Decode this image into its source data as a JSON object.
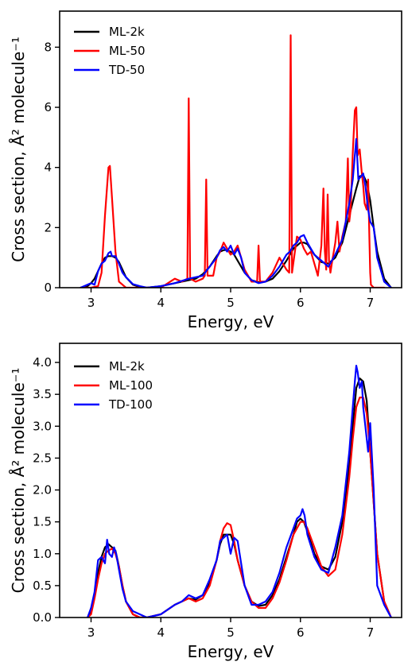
{
  "chart_data": [
    {
      "type": "line",
      "title": "",
      "xlabel": "Energy, eV",
      "ylabel": "Cross section, Å² molecule⁻¹",
      "xlim": [
        2.55,
        7.45
      ],
      "ylim": [
        0,
        9.2
      ],
      "xticks": [
        3,
        4,
        5,
        6,
        7
      ],
      "yticks": [
        0,
        2,
        4,
        6,
        8
      ],
      "ytick_decimals": 0,
      "legend_position": "top-left",
      "series": [
        {
          "name": "ML-2k",
          "color": "#000000",
          "x": [
            2.85,
            2.95,
            3.0,
            3.05,
            3.1,
            3.15,
            3.2,
            3.25,
            3.3,
            3.35,
            3.4,
            3.45,
            3.5,
            3.6,
            3.7,
            3.8,
            4.0,
            4.2,
            4.4,
            4.5,
            4.6,
            4.7,
            4.8,
            4.85,
            4.9,
            4.95,
            5.0,
            5.05,
            5.1,
            5.2,
            5.3,
            5.4,
            5.5,
            5.6,
            5.7,
            5.8,
            5.9,
            6.0,
            6.05,
            6.1,
            6.2,
            6.3,
            6.4,
            6.5,
            6.6,
            6.7,
            6.8,
            6.85,
            6.9,
            6.95,
            7.0,
            7.05,
            7.1,
            7.2,
            7.3
          ],
          "y": [
            0,
            0.05,
            0.15,
            0.3,
            0.55,
            0.8,
            1.0,
            1.05,
            1.05,
            1.0,
            0.85,
            0.6,
            0.35,
            0.1,
            0.02,
            0,
            0.05,
            0.15,
            0.25,
            0.3,
            0.45,
            0.7,
            1.05,
            1.2,
            1.25,
            1.25,
            1.2,
            1.1,
            0.9,
            0.5,
            0.25,
            0.18,
            0.2,
            0.3,
            0.55,
            0.9,
            1.3,
            1.5,
            1.5,
            1.45,
            1.1,
            0.85,
            0.8,
            1.0,
            1.5,
            2.4,
            3.3,
            3.7,
            3.75,
            3.5,
            2.9,
            2.0,
            1.2,
            0.3,
            0
          ]
        },
        {
          "name": "ML-50",
          "color": "#ff0000",
          "x": [
            2.85,
            3.0,
            3.1,
            3.15,
            3.2,
            3.25,
            3.27,
            3.3,
            3.35,
            3.4,
            3.5,
            3.7,
            4.0,
            4.2,
            4.3,
            4.38,
            4.4,
            4.42,
            4.5,
            4.6,
            4.63,
            4.65,
            4.67,
            4.75,
            4.8,
            4.85,
            4.9,
            4.95,
            5.0,
            5.05,
            5.1,
            5.2,
            5.3,
            5.38,
            5.4,
            5.42,
            5.5,
            5.6,
            5.7,
            5.8,
            5.84,
            5.86,
            5.88,
            5.95,
            6.0,
            6.05,
            6.1,
            6.15,
            6.2,
            6.25,
            6.3,
            6.33,
            6.35,
            6.37,
            6.39,
            6.41,
            6.43,
            6.45,
            6.5,
            6.53,
            6.56,
            6.6,
            6.65,
            6.68,
            6.7,
            6.72,
            6.75,
            6.78,
            6.8,
            6.82,
            6.85,
            6.88,
            6.9,
            6.92,
            6.95,
            6.97,
            6.99,
            7.0,
            7.01,
            7.05,
            7.2
          ],
          "y": [
            0,
            0,
            0.05,
            0.5,
            2.4,
            4.0,
            4.05,
            3.0,
            1.2,
            0.2,
            0,
            0,
            0,
            0.3,
            0.2,
            0.3,
            6.3,
            0.3,
            0.2,
            0.3,
            0.4,
            3.6,
            0.4,
            0.4,
            1.0,
            1.2,
            1.5,
            1.3,
            1.1,
            1.2,
            1.4,
            0.6,
            0.2,
            0.2,
            1.4,
            0.2,
            0.2,
            0.5,
            1.0,
            0.6,
            0.5,
            8.4,
            0.5,
            1.7,
            1.6,
            1.3,
            1.1,
            1.2,
            0.8,
            0.4,
            1.4,
            3.3,
            1.2,
            0.6,
            3.1,
            0.9,
            0.5,
            0.8,
            1.5,
            2.2,
            1.2,
            1.7,
            2.2,
            4.3,
            2.2,
            2.6,
            4.5,
            5.9,
            6.0,
            4.4,
            4.6,
            3.8,
            3.4,
            2.8,
            2.6,
            3.6,
            1.5,
            0.5,
            0.1,
            0,
            0
          ]
        },
        {
          "name": "TD-50",
          "color": "#0000ff",
          "x": [
            2.85,
            3.0,
            3.05,
            3.1,
            3.15,
            3.2,
            3.25,
            3.28,
            3.3,
            3.35,
            3.4,
            3.45,
            3.5,
            3.6,
            3.7,
            3.8,
            4.0,
            4.2,
            4.4,
            4.5,
            4.6,
            4.7,
            4.8,
            4.85,
            4.9,
            4.95,
            5.0,
            5.05,
            5.1,
            5.15,
            5.2,
            5.3,
            5.4,
            5.5,
            5.6,
            5.7,
            5.8,
            5.85,
            5.9,
            5.95,
            6.0,
            6.05,
            6.1,
            6.2,
            6.3,
            6.4,
            6.5,
            6.6,
            6.7,
            6.75,
            6.78,
            6.8,
            6.83,
            6.87,
            6.9,
            6.93,
            6.97,
            7.0,
            7.05,
            7.1,
            7.2,
            7.3
          ],
          "y": [
            0,
            0.15,
            0.1,
            0.55,
            0.8,
            0.9,
            1.15,
            1.2,
            1.05,
            1.05,
            0.8,
            0.5,
            0.35,
            0.12,
            0.05,
            0,
            0.05,
            0.15,
            0.3,
            0.35,
            0.4,
            0.7,
            1.0,
            1.25,
            1.35,
            1.2,
            1.4,
            1.1,
            1.3,
            1.0,
            0.5,
            0.25,
            0.15,
            0.2,
            0.4,
            0.7,
            1.1,
            1.2,
            1.4,
            1.5,
            1.7,
            1.75,
            1.5,
            1.1,
            0.9,
            0.7,
            1.1,
            1.6,
            2.8,
            3.6,
            4.4,
            4.95,
            3.6,
            3.7,
            3.8,
            3.4,
            2.6,
            2.2,
            2.0,
            1.0,
            0.2,
            0
          ]
        }
      ]
    },
    {
      "type": "line",
      "title": "",
      "xlabel": "Energy, eV",
      "ylabel": "Cross section, Å² molecule⁻¹",
      "xlim": [
        2.55,
        7.45
      ],
      "ylim": [
        0,
        4.3
      ],
      "xticks": [
        3,
        4,
        5,
        6,
        7
      ],
      "yticks": [
        0,
        0.5,
        1.0,
        1.5,
        2.0,
        2.5,
        3.0,
        3.5,
        4.0
      ],
      "ytick_decimals": 1,
      "legend_position": "top-left",
      "series": [
        {
          "name": "ML-2k",
          "color": "#000000",
          "x": [
            2.95,
            3.0,
            3.05,
            3.1,
            3.15,
            3.2,
            3.25,
            3.3,
            3.35,
            3.4,
            3.45,
            3.5,
            3.6,
            3.7,
            3.8,
            4.0,
            4.2,
            4.3,
            4.4,
            4.5,
            4.6,
            4.7,
            4.8,
            4.85,
            4.9,
            4.95,
            5.0,
            5.05,
            5.1,
            5.2,
            5.3,
            5.4,
            5.5,
            5.6,
            5.7,
            5.8,
            5.9,
            5.95,
            6.0,
            6.05,
            6.1,
            6.2,
            6.3,
            6.4,
            6.5,
            6.6,
            6.7,
            6.75,
            6.8,
            6.85,
            6.9,
            6.95,
            7.0,
            7.05,
            7.1,
            7.2,
            7.3
          ],
          "y": [
            0,
            0.1,
            0.35,
            0.7,
            0.95,
            1.1,
            1.15,
            1.1,
            1.05,
            0.8,
            0.5,
            0.25,
            0.05,
            0,
            0,
            0.05,
            0.2,
            0.25,
            0.3,
            0.28,
            0.35,
            0.55,
            0.9,
            1.15,
            1.3,
            1.3,
            1.3,
            1.15,
            0.9,
            0.5,
            0.25,
            0.18,
            0.2,
            0.35,
            0.6,
            0.95,
            1.3,
            1.5,
            1.55,
            1.5,
            1.35,
            1.0,
            0.8,
            0.75,
            0.95,
            1.5,
            2.4,
            3.0,
            3.6,
            3.75,
            3.7,
            3.4,
            2.6,
            1.8,
            1.0,
            0.25,
            0
          ]
        },
        {
          "name": "ML-100",
          "color": "#ff0000",
          "x": [
            2.95,
            3.0,
            3.05,
            3.1,
            3.15,
            3.2,
            3.25,
            3.3,
            3.35,
            3.4,
            3.45,
            3.5,
            3.6,
            3.7,
            3.8,
            4.0,
            4.2,
            4.3,
            4.4,
            4.5,
            4.6,
            4.7,
            4.8,
            4.85,
            4.9,
            4.95,
            5.0,
            5.05,
            5.1,
            5.2,
            5.3,
            5.4,
            5.5,
            5.6,
            5.7,
            5.8,
            5.9,
            6.0,
            6.05,
            6.1,
            6.2,
            6.3,
            6.4,
            6.5,
            6.6,
            6.7,
            6.75,
            6.8,
            6.85,
            6.9,
            6.95,
            7.0,
            7.05,
            7.1,
            7.2,
            7.3
          ],
          "y": [
            0,
            0.05,
            0.3,
            0.6,
            0.85,
            1.0,
            1.05,
            1.08,
            1.0,
            0.8,
            0.5,
            0.25,
            0.05,
            0,
            0,
            0.05,
            0.2,
            0.25,
            0.3,
            0.25,
            0.3,
            0.5,
            0.9,
            1.2,
            1.4,
            1.48,
            1.45,
            1.2,
            0.9,
            0.5,
            0.25,
            0.15,
            0.15,
            0.3,
            0.55,
            0.9,
            1.3,
            1.5,
            1.5,
            1.4,
            1.1,
            0.8,
            0.65,
            0.75,
            1.3,
            2.2,
            2.8,
            3.3,
            3.45,
            3.45,
            3.2,
            2.6,
            1.8,
            1.0,
            0.25,
            0
          ]
        },
        {
          "name": "TD-100",
          "color": "#0000ff",
          "x": [
            2.95,
            3.0,
            3.05,
            3.1,
            3.15,
            3.2,
            3.23,
            3.26,
            3.3,
            3.33,
            3.36,
            3.4,
            3.45,
            3.5,
            3.6,
            3.7,
            3.8,
            4.0,
            4.2,
            4.3,
            4.4,
            4.5,
            4.6,
            4.7,
            4.8,
            4.85,
            4.9,
            4.95,
            5.0,
            5.05,
            5.1,
            5.2,
            5.3,
            5.4,
            5.5,
            5.6,
            5.7,
            5.8,
            5.9,
            5.95,
            6.0,
            6.03,
            6.06,
            6.1,
            6.2,
            6.3,
            6.4,
            6.5,
            6.6,
            6.7,
            6.75,
            6.78,
            6.8,
            6.82,
            6.85,
            6.88,
            6.9,
            6.93,
            6.97,
            7.0,
            7.05,
            7.1,
            7.2,
            7.3
          ],
          "y": [
            0,
            0.15,
            0.4,
            0.9,
            0.95,
            0.85,
            1.22,
            1.0,
            0.95,
            1.1,
            1.0,
            0.75,
            0.45,
            0.25,
            0.1,
            0.05,
            0,
            0.05,
            0.2,
            0.25,
            0.35,
            0.3,
            0.35,
            0.6,
            0.9,
            1.2,
            1.25,
            1.3,
            1.0,
            1.25,
            1.2,
            0.5,
            0.2,
            0.2,
            0.25,
            0.4,
            0.7,
            1.1,
            1.4,
            1.55,
            1.6,
            1.7,
            1.6,
            1.3,
            0.95,
            0.75,
            0.7,
            1.1,
            1.6,
            2.6,
            3.3,
            3.7,
            3.95,
            3.85,
            3.6,
            3.7,
            3.3,
            3.0,
            2.6,
            3.05,
            2.0,
            0.5,
            0.2,
            0
          ]
        }
      ]
    }
  ]
}
